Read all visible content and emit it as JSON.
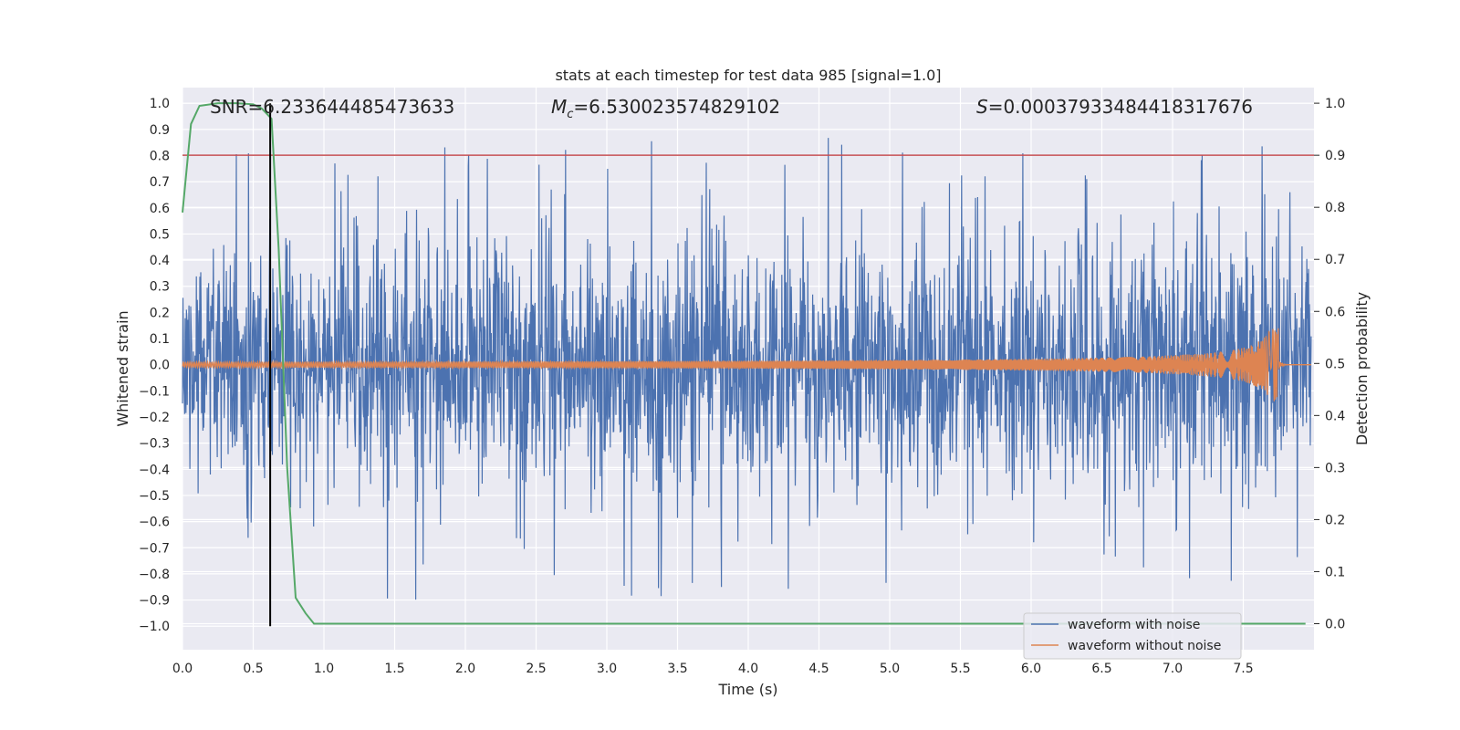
{
  "chart_data": {
    "type": "line",
    "title": "stats at each timestep for test data 985 [signal=1.0]",
    "xlabel": "Time (s)",
    "ylabel": "Whitened strain",
    "ylabel_right": "Detection probability",
    "xlim": [
      0.0,
      8.0
    ],
    "ylim": [
      -1.09,
      1.06
    ],
    "ylim_right": [
      -0.05,
      1.03
    ],
    "x_ticks": [
      "0.0",
      "0.5",
      "1.0",
      "1.5",
      "2.0",
      "2.5",
      "3.0",
      "3.5",
      "4.0",
      "4.5",
      "5.0",
      "5.5",
      "6.0",
      "6.5",
      "7.0",
      "7.5"
    ],
    "y_ticks": [
      "1.0",
      "0.9",
      "0.8",
      "0.7",
      "0.6",
      "0.5",
      "0.4",
      "0.3",
      "0.2",
      "0.1",
      "0.0",
      "−0.1",
      "−0.2",
      "−0.3",
      "−0.4",
      "−0.5",
      "−0.6",
      "−0.7",
      "−0.8",
      "−0.9",
      "−1.0"
    ],
    "y_right_ticks": [
      "1.0",
      "0.9",
      "0.8",
      "0.7",
      "0.6",
      "0.5",
      "0.4",
      "0.3",
      "0.2",
      "0.1",
      "0.0"
    ],
    "annotations": {
      "snr": "SNR=6.233644485473633",
      "mc_symbol": "M",
      "mc_sub": "c",
      "mc_value": "=6.530023574829102",
      "s_symbol": "S",
      "s_value": "=0.00037933484418317676"
    },
    "threshold_right": 0.9,
    "vline_time": 0.62,
    "series": [
      {
        "name": "waveform with noise",
        "color": "#4c72b0",
        "kind": "noise",
        "envelope_typical": 0.38,
        "peak_max": 0.96,
        "peak_min": -1.0
      },
      {
        "name": "waveform without noise",
        "color": "#dd8452",
        "kind": "chirp",
        "amp_start": 0.01,
        "amp_peak": 0.14,
        "merger_time": 7.75
      },
      {
        "name": "",
        "color": "#55a868",
        "axis": "right",
        "x": [
          0.0,
          0.06,
          0.12,
          0.25,
          0.38,
          0.5,
          0.56,
          0.63,
          0.68,
          0.74,
          0.8,
          0.87,
          0.93,
          1.0,
          2.0,
          3.0,
          4.0,
          5.0,
          6.0,
          7.0,
          7.94
        ],
        "values": [
          0.79,
          0.96,
          0.995,
          1.0,
          1.0,
          0.998,
          0.99,
          0.97,
          0.72,
          0.3,
          0.05,
          0.02,
          0.0,
          0.0,
          0.0,
          0.0,
          0.0,
          0.0,
          0.0,
          0.0,
          0.0
        ]
      },
      {
        "name": "",
        "color": "#c44e52",
        "kind": "threshold"
      }
    ],
    "grid": true,
    "legend_position": "lower-right"
  }
}
